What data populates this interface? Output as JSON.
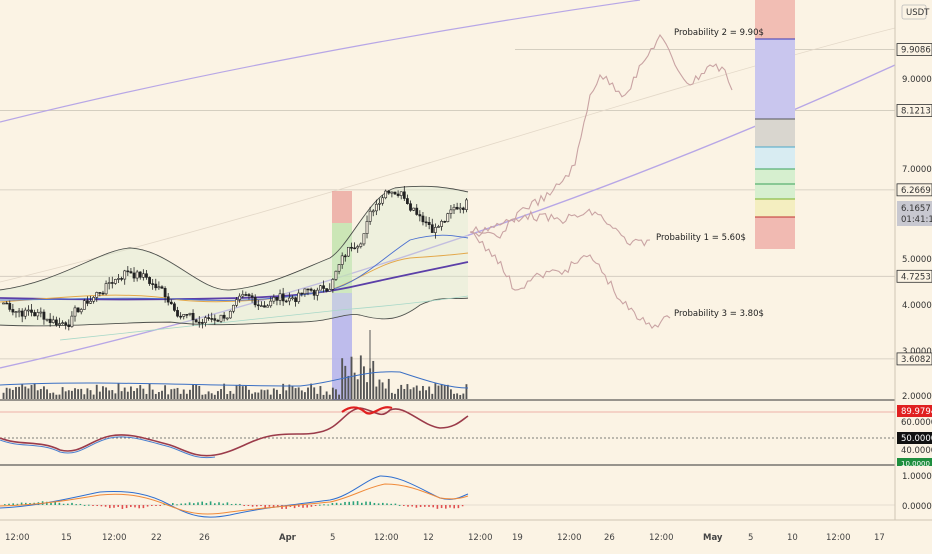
{
  "quote_currency": "USDT",
  "current_price": "6.1657",
  "countdown": "01:41:12",
  "colors": {
    "background": "#fbf3e4",
    "candle": "#222222",
    "bollinger": "#333333",
    "ma_blue": "#4a6fd0",
    "ma_purple": "#5b3fa8",
    "ma_orange": "#e3a84a",
    "channel": "#b7a6e6",
    "projection": "#c9a3a3",
    "rsi_line": "#9b3b4a",
    "rsi_hot": "#e02020",
    "macd": "#2f6fd0",
    "signal": "#f08a3a",
    "hist_pos": "#2aa27a",
    "hist_neg": "#e05050"
  },
  "annotations": [
    "Probability 2 = 9.90$",
    "Probability 1 = 5.60$",
    "Probability 3 = 3.80$"
  ],
  "price_axis": {
    "ticks": [
      "9.0000",
      "7.0000",
      "5.0000",
      "4.0000",
      "3.0000",
      "2.0000"
    ],
    "tags": [
      {
        "text": "9.9086",
        "price": 9.9086,
        "color": "#333333"
      },
      {
        "text": "8.1213",
        "price": 8.1213,
        "color": "#333333"
      },
      {
        "text": "6.2669",
        "price": 6.2669,
        "color": "#333333"
      },
      {
        "text": "4.7253",
        "price": 4.7253,
        "color": "#333333"
      },
      {
        "text": "3.6082",
        "price": 3.6082,
        "color": "#333333"
      }
    ]
  },
  "rsi_axis": {
    "ticks": [
      "60.0000",
      "40.0000"
    ],
    "tags": [
      {
        "text": "89.9794",
        "color": "#e02020"
      },
      {
        "text": "50.0000",
        "color": "#111111"
      },
      {
        "text": "10.0000",
        "color": "#1e8e3e"
      }
    ]
  },
  "macd_axis": {
    "ticks": [
      "1.0000",
      "0.0000"
    ]
  },
  "time_axis": [
    "12:00",
    "15",
    "12:00",
    "22",
    "26",
    "Apr",
    "5",
    "12:00",
    "12",
    "12:00",
    "19",
    "12:00",
    "26",
    "12:00",
    "May",
    "5",
    "10",
    "12:00",
    "17"
  ],
  "chart_data": {
    "type": "candlestick",
    "price_range": [
      1.8,
      12.0
    ],
    "scale": "log",
    "grid": false,
    "horizontal_levels": [
      9.9086,
      8.1213,
      6.2669,
      4.7253,
      3.6082
    ],
    "current_price": 6.1657,
    "projection_targets": [
      9.9,
      5.6,
      3.8
    ],
    "rsi": {
      "range": [
        0,
        100
      ],
      "levels": [
        89.9794,
        50,
        10
      ]
    },
    "macd": {
      "range": [
        -0.6,
        1.6
      ]
    }
  }
}
